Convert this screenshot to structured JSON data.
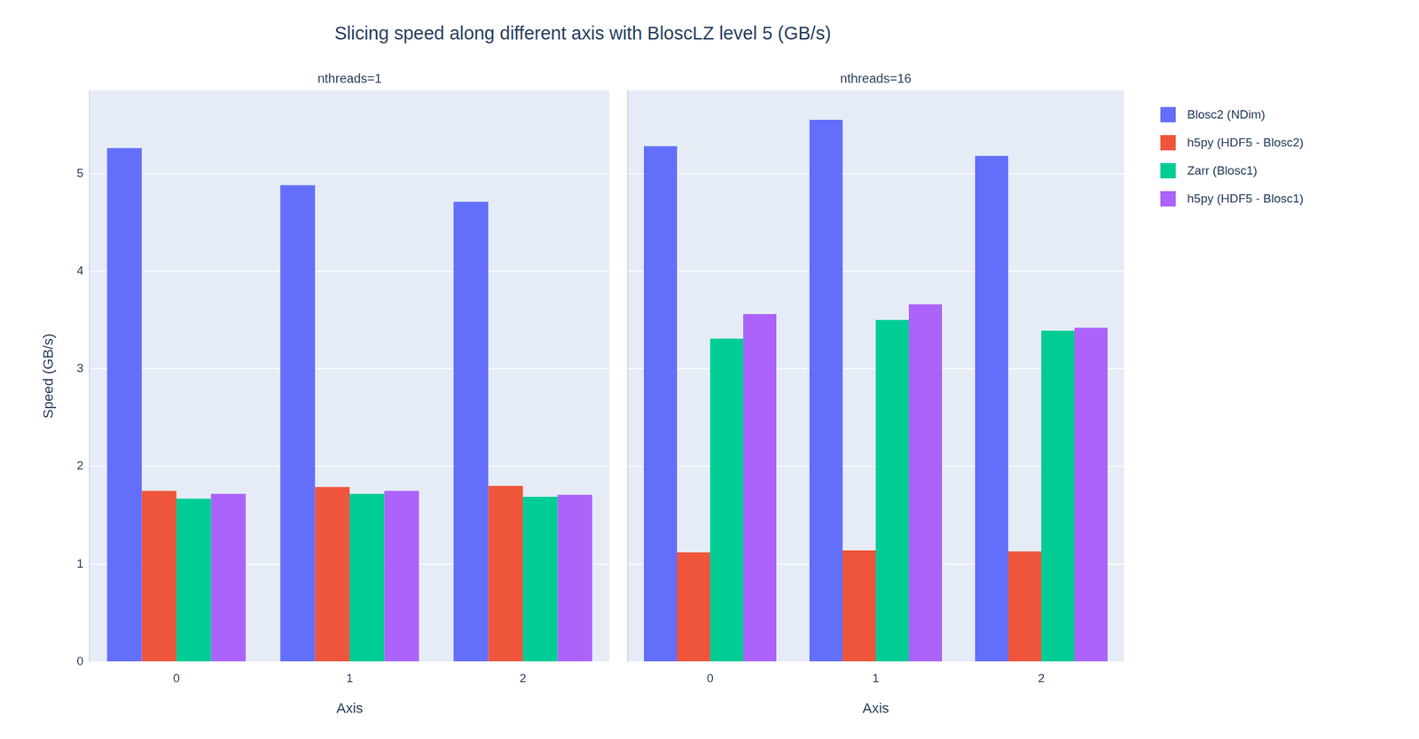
{
  "title": "Slicing speed along different axis with BloscLZ level 5 (GB/s)",
  "chart_data": [
    {
      "type": "bar",
      "title": "nthreads=1",
      "x_label": "Axis",
      "y_label": "Speed (GB/s)",
      "categories": [
        "0",
        "1",
        "2"
      ],
      "series": [
        {
          "name": "Blosc2 (NDim)",
          "color": "#636efa",
          "values": [
            5.26,
            4.88,
            4.71
          ]
        },
        {
          "name": "h5py (HDF5 - Blosc2)",
          "color": "#ef553b",
          "values": [
            1.75,
            1.79,
            1.8
          ]
        },
        {
          "name": "Zarr (Blosc1)",
          "color": "#00cc96",
          "values": [
            1.67,
            1.72,
            1.69
          ]
        },
        {
          "name": "h5py (HDF5 - Blosc1)",
          "color": "#ab63fa",
          "values": [
            1.72,
            1.75,
            1.71
          ]
        }
      ],
      "ylim": [
        0,
        5.85
      ],
      "yticks": [
        0,
        1,
        2,
        3,
        4,
        5
      ],
      "grid": true
    },
    {
      "type": "bar",
      "title": "nthreads=16",
      "x_label": "Axis",
      "categories": [
        "0",
        "1",
        "2"
      ],
      "series": [
        {
          "name": "Blosc2 (NDim)",
          "color": "#636efa",
          "values": [
            5.28,
            5.55,
            5.18
          ]
        },
        {
          "name": "h5py (HDF5 - Blosc2)",
          "color": "#ef553b",
          "values": [
            1.12,
            1.14,
            1.13
          ]
        },
        {
          "name": "Zarr (Blosc1)",
          "color": "#00cc96",
          "values": [
            3.31,
            3.5,
            3.39
          ]
        },
        {
          "name": "h5py (HDF5 - Blosc1)",
          "color": "#ab63fa",
          "values": [
            3.56,
            3.66,
            3.42
          ]
        }
      ],
      "ylim": [
        0,
        5.85
      ],
      "yticks": [
        0,
        1,
        2,
        3,
        4,
        5
      ],
      "grid": true,
      "tick_labels": "x",
      "legend": "right"
    }
  ]
}
